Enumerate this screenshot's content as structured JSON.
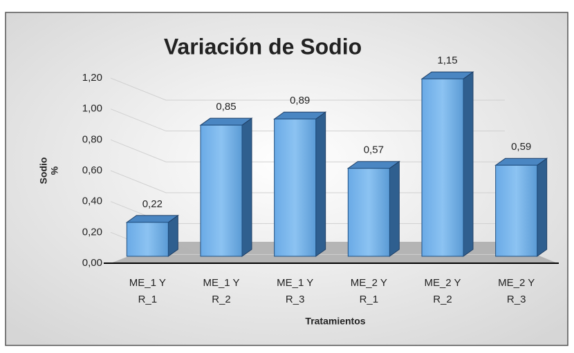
{
  "chart_data": {
    "type": "bar3d",
    "title": "Variación de Sodio",
    "x_label": "Tratamientos",
    "y_label": [
      "Sodio",
      "%"
    ],
    "categories": [
      [
        "ME_1 Y",
        "R_1"
      ],
      [
        "ME_1 Y",
        "R_2"
      ],
      [
        "ME_1 Y",
        "R_3"
      ],
      [
        "ME_2 Y",
        "R_1"
      ],
      [
        "ME_2 Y",
        "R_2"
      ],
      [
        "ME_2 Y",
        "R_3"
      ]
    ],
    "values": [
      0.22,
      0.85,
      0.89,
      0.57,
      1.15,
      0.59
    ],
    "value_labels": [
      "0,22",
      "0,85",
      "0,89",
      "0,57",
      "1,15",
      "0,59"
    ],
    "color": "#5b9bd5",
    "ylim": [
      0,
      1.2
    ],
    "yticks": [
      {
        "value": 0,
        "label": "0,00"
      },
      {
        "value": 0.2,
        "label": "0,20"
      },
      {
        "value": 0.4,
        "label": "0,40"
      },
      {
        "value": 0.6,
        "label": "0,60"
      },
      {
        "value": 0.8,
        "label": "0,80"
      },
      {
        "value": 1.0,
        "label": "1,00"
      },
      {
        "value": 1.2,
        "label": "1,20"
      }
    ],
    "grid": true
  }
}
